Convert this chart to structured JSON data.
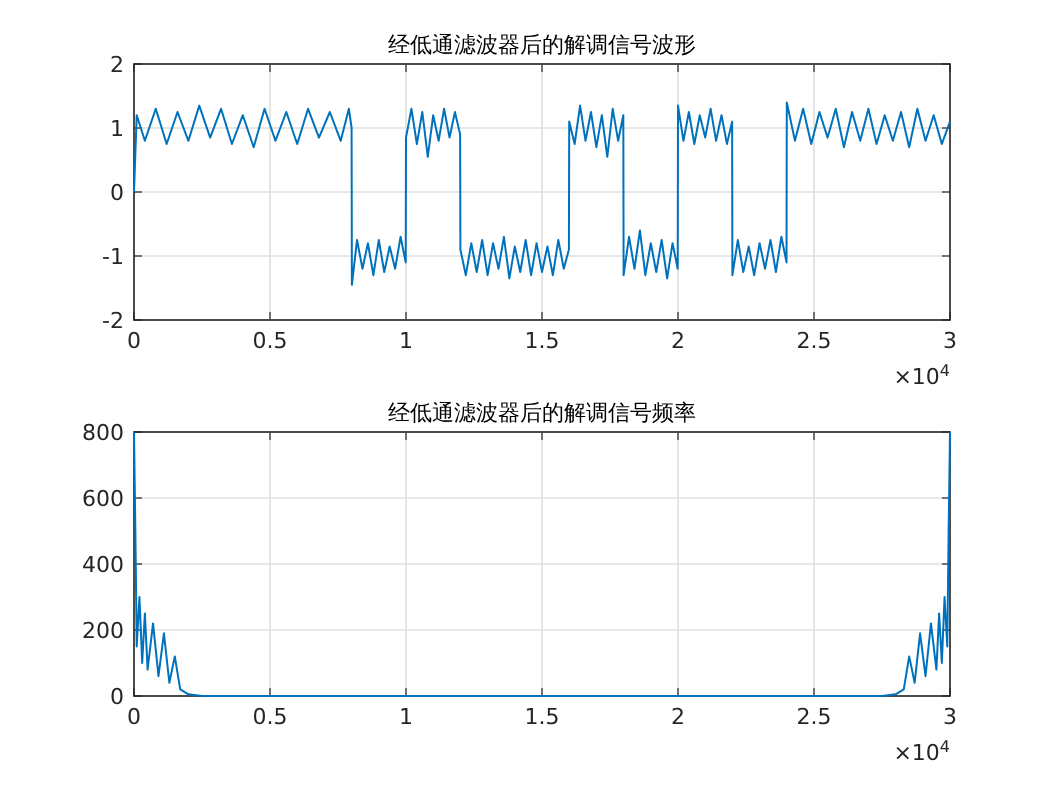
{
  "chart_data": [
    {
      "type": "line",
      "title": "经低通滤波器后的解调信号波形",
      "annotations": [
        "×10$^{4}$"
      ],
      "grid": true,
      "xlim": [
        0,
        3
      ],
      "ylim": [
        -2,
        2
      ],
      "xticks": [
        0,
        0.5,
        1,
        1.5,
        2,
        2.5,
        3
      ],
      "yticks": [
        -2,
        -1,
        0,
        1,
        2
      ],
      "series": [
        {
          "color": "#0072bd",
          "x": [
            0,
            0.01,
            0.04,
            0.08,
            0.12,
            0.16,
            0.2,
            0.24,
            0.28,
            0.32,
            0.36,
            0.4,
            0.44,
            0.48,
            0.52,
            0.56,
            0.6,
            0.64,
            0.68,
            0.72,
            0.76,
            0.79,
            0.8,
            0.801,
            0.82,
            0.84,
            0.86,
            0.88,
            0.9,
            0.92,
            0.94,
            0.96,
            0.98,
            0.999,
            1.0,
            1.02,
            1.04,
            1.06,
            1.08,
            1.1,
            1.12,
            1.14,
            1.16,
            1.18,
            1.199,
            1.2,
            1.22,
            1.24,
            1.26,
            1.28,
            1.3,
            1.32,
            1.34,
            1.36,
            1.38,
            1.4,
            1.42,
            1.44,
            1.46,
            1.48,
            1.5,
            1.52,
            1.54,
            1.56,
            1.58,
            1.599,
            1.6,
            1.62,
            1.64,
            1.66,
            1.68,
            1.7,
            1.72,
            1.74,
            1.76,
            1.78,
            1.799,
            1.8,
            1.82,
            1.84,
            1.86,
            1.88,
            1.9,
            1.92,
            1.94,
            1.96,
            1.98,
            1.999,
            2.0,
            2.02,
            2.04,
            2.06,
            2.08,
            2.1,
            2.12,
            2.14,
            2.16,
            2.18,
            2.199,
            2.2,
            2.22,
            2.24,
            2.26,
            2.28,
            2.3,
            2.32,
            2.34,
            2.36,
            2.38,
            2.399,
            2.4,
            2.43,
            2.46,
            2.49,
            2.52,
            2.55,
            2.58,
            2.61,
            2.64,
            2.67,
            2.7,
            2.73,
            2.76,
            2.79,
            2.82,
            2.85,
            2.88,
            2.91,
            2.94,
            2.97,
            3.0
          ],
          "values": [
            0,
            1.2,
            0.8,
            1.3,
            0.75,
            1.25,
            0.8,
            1.35,
            0.85,
            1.3,
            0.75,
            1.2,
            0.7,
            1.3,
            0.8,
            1.25,
            0.75,
            1.3,
            0.85,
            1.25,
            0.8,
            1.3,
            1.0,
            -1.45,
            -0.75,
            -1.2,
            -0.8,
            -1.3,
            -0.75,
            -1.25,
            -0.85,
            -1.2,
            -0.7,
            -1.1,
            0.85,
            1.3,
            0.75,
            1.25,
            0.55,
            1.2,
            0.8,
            1.3,
            0.85,
            1.25,
            0.9,
            -0.9,
            -1.3,
            -0.8,
            -1.25,
            -0.75,
            -1.3,
            -0.8,
            -1.2,
            -0.7,
            -1.35,
            -0.85,
            -1.25,
            -0.75,
            -1.3,
            -0.8,
            -1.25,
            -0.85,
            -1.3,
            -0.75,
            -1.2,
            -0.9,
            1.1,
            0.75,
            1.35,
            0.8,
            1.25,
            0.7,
            1.2,
            0.55,
            1.3,
            0.8,
            1.2,
            -1.3,
            -0.7,
            -1.2,
            -0.6,
            -1.3,
            -0.8,
            -1.25,
            -0.75,
            -1.35,
            -0.8,
            -1.2,
            1.35,
            0.8,
            1.25,
            0.75,
            1.2,
            0.85,
            1.3,
            0.8,
            1.2,
            0.75,
            1.1,
            -1.3,
            -0.75,
            -1.25,
            -0.85,
            -1.3,
            -0.8,
            -1.2,
            -0.75,
            -1.25,
            -0.7,
            -1.1,
            1.4,
            0.8,
            1.3,
            0.75,
            1.25,
            0.85,
            1.3,
            0.7,
            1.25,
            0.8,
            1.3,
            0.75,
            1.2,
            0.8,
            1.25,
            0.7,
            1.3,
            0.8,
            1.2,
            0.75,
            1.1
          ]
        }
      ]
    },
    {
      "type": "line",
      "title": "经低通滤波器后的解调信号频率",
      "annotations": [
        "×10$^{4}$"
      ],
      "grid": true,
      "xlim": [
        0,
        3
      ],
      "ylim": [
        0,
        800
      ],
      "xticks": [
        0,
        0.5,
        1,
        1.5,
        2,
        2.5,
        3
      ],
      "yticks": [
        0,
        200,
        400,
        600,
        800
      ],
      "series": [
        {
          "color": "#0072bd",
          "x": [
            0,
            0.005,
            0.01,
            0.02,
            0.03,
            0.04,
            0.05,
            0.07,
            0.09,
            0.11,
            0.13,
            0.15,
            0.17,
            0.2,
            0.25,
            2.75,
            2.8,
            2.83,
            2.85,
            2.87,
            2.89,
            2.91,
            2.93,
            2.95,
            2.96,
            2.97,
            2.98,
            2.99,
            2.995,
            3.0
          ],
          "values": [
            800,
            500,
            150,
            300,
            100,
            250,
            80,
            220,
            60,
            190,
            40,
            120,
            20,
            5,
            0,
            0,
            5,
            20,
            120,
            40,
            190,
            60,
            220,
            80,
            250,
            100,
            300,
            150,
            500,
            800
          ]
        }
      ]
    }
  ]
}
